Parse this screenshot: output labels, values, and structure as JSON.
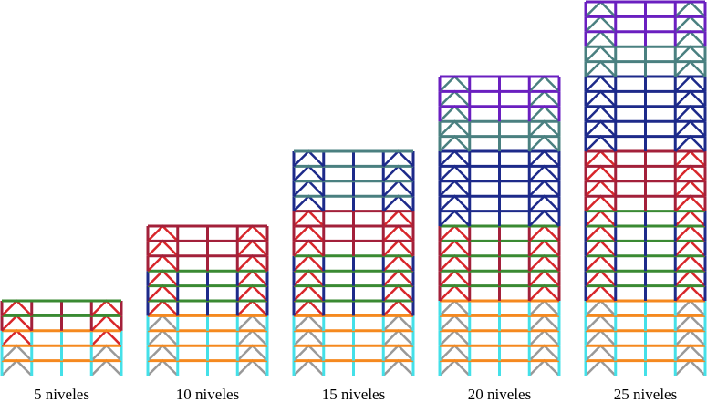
{
  "labels": [
    "5 niveles",
    "10 niveles",
    "15 niveles",
    "20 niveles",
    "25 niveles"
  ]
}
